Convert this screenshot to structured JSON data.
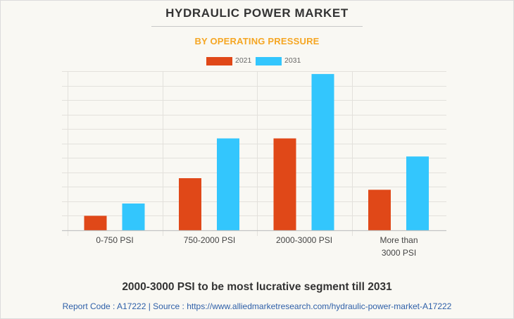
{
  "header": {
    "title": "HYDRAULIC POWER MARKET",
    "subtitle": "BY OPERATING PRESSURE"
  },
  "colors": {
    "series_2021": "#e04818",
    "series_2031": "#33c6fd",
    "subtitle": "#f5a623",
    "footer_link": "#2e5fa8",
    "grid": "#e3e1dc",
    "background": "#f9f8f3"
  },
  "chart_data": {
    "type": "bar",
    "title": "HYDRAULIC POWER MARKET",
    "subtitle": "BY OPERATING PRESSURE",
    "categories": [
      "0-750 PSI",
      "750-2000 PSI",
      "2000-3000 PSI",
      "More than 3000 PSI"
    ],
    "category_lines": [
      [
        "0-750 PSI"
      ],
      [
        "750-2000 PSI"
      ],
      [
        "2000-3000 PSI"
      ],
      [
        "More than",
        "3000 PSI"
      ]
    ],
    "series": [
      {
        "name": "2021",
        "values": [
          1.0,
          3.6,
          6.35,
          2.8
        ]
      },
      {
        "name": "2031",
        "values": [
          1.85,
          6.35,
          10.8,
          5.1
        ]
      }
    ],
    "xlabel": "",
    "ylabel": "",
    "ylim": [
      0,
      11
    ],
    "y_tick_labels_shown": false,
    "grid": true,
    "legend_position": "top-center"
  },
  "footer": {
    "insight": "2000-3000 PSI to be most lucrative segment till 2031",
    "source": "Report Code : A17222  |  Source : https://www.alliedmarketresearch.com/hydraulic-power-market-A17222"
  }
}
